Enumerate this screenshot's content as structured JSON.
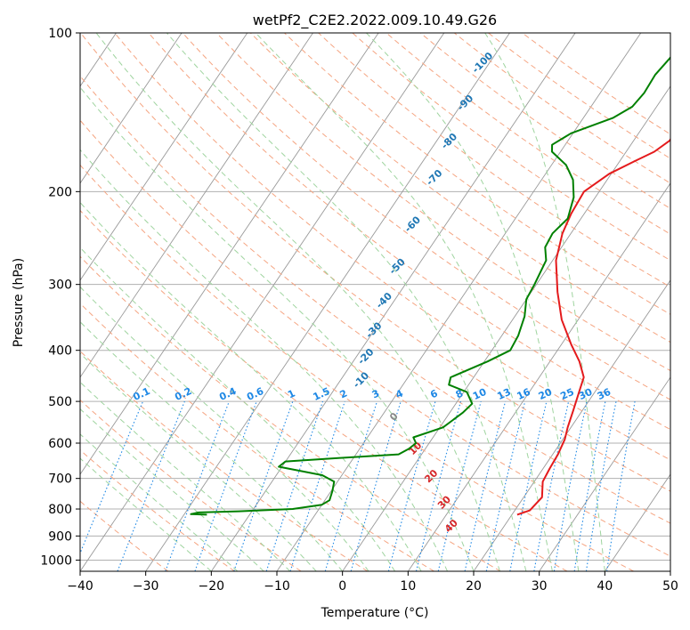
{
  "chart_data": {
    "type": "line",
    "title": "wetPf2_C2E2.2022.009.10.49.G26",
    "xlabel": "Temperature (°C)",
    "ylabel": "Pressure (hPa)",
    "xlim": [
      -40,
      50
    ],
    "ylim": [
      1050,
      100
    ],
    "x_ticks": [
      -40,
      -30,
      -20,
      -10,
      0,
      10,
      20,
      30,
      40,
      50
    ],
    "y_ticks": [
      100,
      200,
      300,
      400,
      500,
      600,
      700,
      800,
      900,
      1000
    ],
    "series": [
      {
        "name": "Temperature",
        "color": "#e41a1c",
        "points": [
          [
            20.8,
            820
          ],
          [
            22.3,
            805
          ],
          [
            22.8,
            760
          ],
          [
            21.3,
            710
          ],
          [
            21.0,
            670
          ],
          [
            20.8,
            630
          ],
          [
            20.3,
            590
          ],
          [
            19.5,
            560
          ],
          [
            18.6,
            520
          ],
          [
            17.6,
            480
          ],
          [
            16.8,
            450
          ],
          [
            14.5,
            420
          ],
          [
            11.5,
            390
          ],
          [
            7.5,
            350
          ],
          [
            4.0,
            310
          ],
          [
            0.5,
            270
          ],
          [
            -1.3,
            240
          ],
          [
            -2.0,
            220
          ],
          [
            -2.3,
            200
          ],
          [
            -0.3,
            185
          ],
          [
            2.3,
            175
          ],
          [
            4.3,
            168
          ],
          [
            5.5,
            160
          ],
          [
            5.3,
            148
          ],
          [
            6.2,
            140
          ],
          [
            6.9,
            132
          ],
          [
            6.8,
            125
          ],
          [
            7.6,
            118
          ],
          [
            8.0,
            112
          ],
          [
            9.2,
            106
          ],
          [
            10.2,
            100
          ]
        ]
      },
      {
        "name": "Dewpoint",
        "color": "#008000",
        "points": [
          [
            -26.5,
            820
          ],
          [
            -29.0,
            818
          ],
          [
            -28.0,
            812
          ],
          [
            -22.0,
            808
          ],
          [
            -14.0,
            800
          ],
          [
            -10.0,
            785
          ],
          [
            -9.3,
            770
          ],
          [
            -9.8,
            740
          ],
          [
            -10.5,
            710
          ],
          [
            -13.0,
            690
          ],
          [
            -20.5,
            665
          ],
          [
            -20.0,
            650
          ],
          [
            -12.0,
            640
          ],
          [
            -3.5,
            630
          ],
          [
            -2.5,
            615
          ],
          [
            -2.0,
            600
          ],
          [
            -3.0,
            585
          ],
          [
            0.5,
            560
          ],
          [
            2.0,
            525
          ],
          [
            2.5,
            505
          ],
          [
            0.5,
            480
          ],
          [
            -3.0,
            465
          ],
          [
            -3.5,
            450
          ],
          [
            0.5,
            420
          ],
          [
            2.8,
            400
          ],
          [
            2.5,
            375
          ],
          [
            1.5,
            345
          ],
          [
            0.0,
            320
          ],
          [
            -0.3,
            300
          ],
          [
            -1.0,
            270
          ],
          [
            -2.5,
            255
          ],
          [
            -2.8,
            240
          ],
          [
            -2.0,
            225
          ],
          [
            -3.3,
            205
          ],
          [
            -5.2,
            190
          ],
          [
            -7.8,
            178
          ],
          [
            -11.3,
            168
          ],
          [
            -12.0,
            163
          ],
          [
            -10.3,
            155
          ],
          [
            -5.5,
            145
          ],
          [
            -3.7,
            138
          ],
          [
            -3.3,
            130
          ],
          [
            -3.5,
            120
          ],
          [
            -3.0,
            112
          ],
          [
            -2.7,
            105
          ],
          [
            -2.7,
            100
          ]
        ]
      }
    ],
    "dry_adiabat_labels": [
      "-100",
      "-90",
      "-80",
      "-70",
      "-60",
      "-50",
      "-40",
      "-30",
      "-20",
      "-10",
      "0",
      "10",
      "20",
      "30",
      "40"
    ],
    "mixing_ratio_labels": [
      "0.1",
      "0.2",
      "0.4",
      "0.6",
      "1",
      "1.5",
      "2",
      "3",
      "4",
      "6",
      "8",
      "10",
      "13",
      "16",
      "20",
      "25",
      "30",
      "36"
    ],
    "grid": true
  },
  "colors": {
    "temperature": "#e41a1c",
    "dewpoint": "#008000",
    "dry_adiabat": "#f5a582",
    "moist_adiabat": "#9fd49f",
    "mixing_ratio": "#1e88e5",
    "isotherm": "#999999",
    "grid": "#b0b0b0"
  }
}
